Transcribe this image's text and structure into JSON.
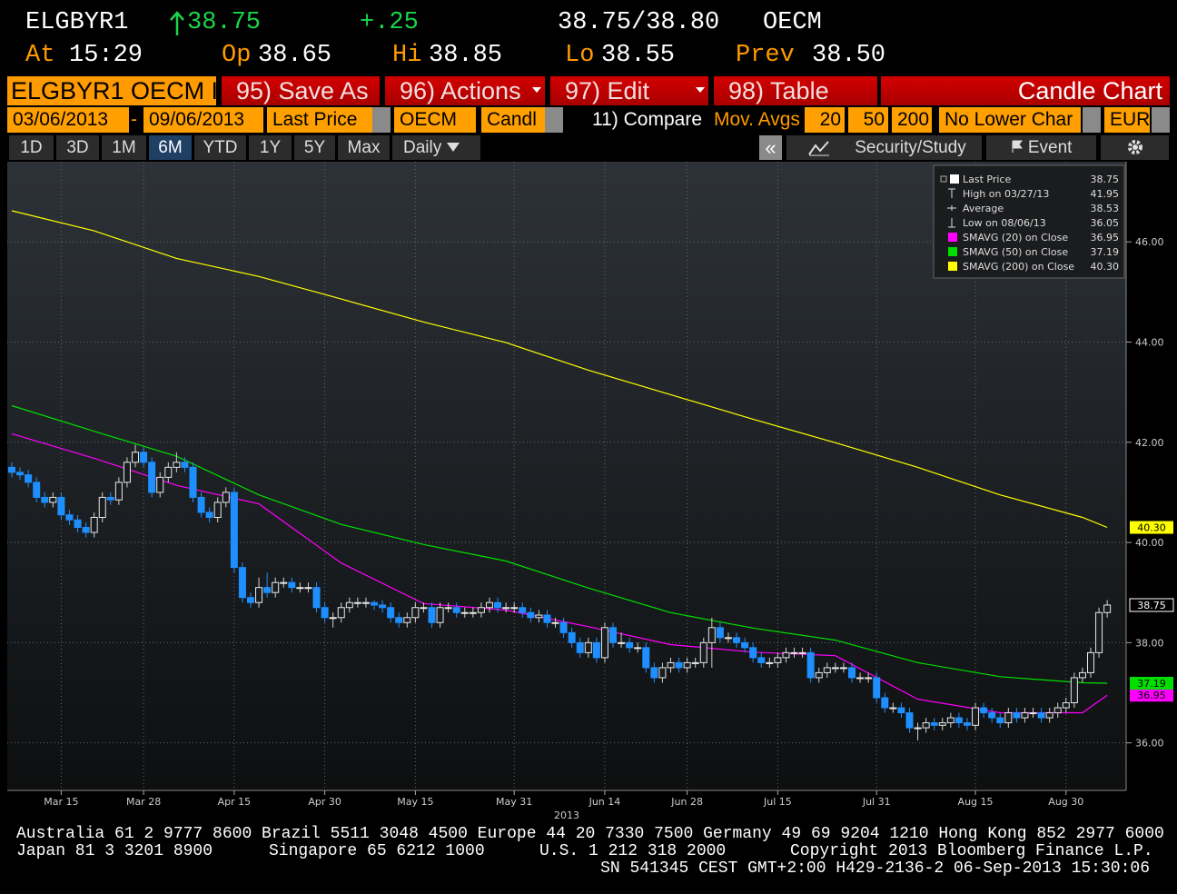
{
  "header": {
    "ticker": "ELGBYR1",
    "price": "38.75",
    "change": "+.25",
    "bid_ask": "38.75/38.80",
    "source": "OECM",
    "quote_row": [
      {
        "label": "At",
        "value": "15:29"
      },
      {
        "label": "Op",
        "value": "38.65"
      },
      {
        "label": "Hi",
        "value": "38.85"
      },
      {
        "label": "Lo",
        "value": "38.55"
      },
      {
        "label": "Prev",
        "value": "38.50"
      }
    ]
  },
  "toolbar": {
    "security": "ELGBYR1 OECM I",
    "buttons": [
      "95) Save As",
      "96) Actions",
      "97) Edit",
      "98) Table"
    ],
    "chart_type": "Candle Chart"
  },
  "settings": {
    "start": "03/06/2013",
    "separator": "-",
    "end": "09/06/2013",
    "field": "Last Price",
    "source": "OECM",
    "style": "Candl",
    "compare": "11) Compare",
    "mov_avgs": "Mov. Avgs",
    "periods": [
      "20",
      "50",
      "200"
    ],
    "lower_chart": "No Lower Char",
    "currency": "EUR"
  },
  "tabs": {
    "ranges": [
      "1D",
      "3D",
      "1M",
      "6M",
      "YTD",
      "1Y",
      "5Y",
      "Max"
    ],
    "selected": "6M",
    "frequency": "Daily",
    "back": "«",
    "study": "Security/Study",
    "event": "Event"
  },
  "chart_data": {
    "type": "candlestick",
    "x_label": "2013",
    "xlim": [
      -0.55,
      135.3
    ],
    "xticks": [
      {
        "value": 6,
        "label": "Mar 15"
      },
      {
        "value": 16,
        "label": "Mar 28"
      },
      {
        "value": 27,
        "label": "Apr 15"
      },
      {
        "value": 38,
        "label": "Apr 30"
      },
      {
        "value": 49,
        "label": "May 15"
      },
      {
        "value": 61,
        "label": "May 31"
      },
      {
        "value": 72,
        "label": "Jun 14"
      },
      {
        "value": 82,
        "label": "Jun 28"
      },
      {
        "value": 93,
        "label": "Jul 15"
      },
      {
        "value": 105,
        "label": "Jul 31"
      },
      {
        "value": 117,
        "label": "Aug 15"
      },
      {
        "value": 128,
        "label": "Aug 30"
      }
    ],
    "ylim": [
      35.05,
      47.6
    ],
    "yticks": [
      {
        "value": 36,
        "label": "36.00"
      },
      {
        "value": 38,
        "label": "38.00"
      },
      {
        "value": 40,
        "label": "40.00"
      },
      {
        "value": 42,
        "label": "42.00"
      },
      {
        "value": 44,
        "label": "44.00"
      },
      {
        "value": 46,
        "label": "46.00"
      }
    ],
    "grid": true,
    "up_color": "#ffffff",
    "down_color": "#1e8fff",
    "candles": {
      "open": [
        41.5,
        41.4,
        41.35,
        41.2,
        40.9,
        40.8,
        40.9,
        40.55,
        40.45,
        40.3,
        40.2,
        40.5,
        40.9,
        40.85,
        41.2,
        41.6,
        41.8,
        41.6,
        41.0,
        41.3,
        41.5,
        41.6,
        41.5,
        40.9,
        40.6,
        40.5,
        40.8,
        41.0,
        39.5,
        38.9,
        38.8,
        39.1,
        39.0,
        39.2,
        39.2,
        39.1,
        39.1,
        39.1,
        38.7,
        38.5,
        38.5,
        38.7,
        38.8,
        38.8,
        38.8,
        38.75,
        38.7,
        38.5,
        38.4,
        38.5,
        38.7,
        38.7,
        38.4,
        38.7,
        38.7,
        38.6,
        38.6,
        38.6,
        38.7,
        38.8,
        38.7,
        38.7,
        38.7,
        38.6,
        38.5,
        38.55,
        38.4,
        38.4,
        38.2,
        38.0,
        37.8,
        38.0,
        37.7,
        38.3,
        38.0,
        38.0,
        37.9,
        37.9,
        37.5,
        37.3,
        37.5,
        37.6,
        37.5,
        37.6,
        37.6,
        38.0,
        38.3,
        38.1,
        38.1,
        38.0,
        37.9,
        37.7,
        37.6,
        37.6,
        37.7,
        37.8,
        37.8,
        37.8,
        37.3,
        37.4,
        37.5,
        37.5,
        37.5,
        37.3,
        37.3,
        37.3,
        36.9,
        36.7,
        36.7,
        36.6,
        36.3,
        36.3,
        36.4,
        36.35,
        36.4,
        36.5,
        36.4,
        36.35,
        36.7,
        36.6,
        36.5,
        36.4,
        36.6,
        36.5,
        36.6,
        36.6,
        36.5,
        36.6,
        36.7,
        36.8,
        37.3,
        37.4,
        37.8,
        38.6
      ],
      "high": [
        41.6,
        41.5,
        41.45,
        41.3,
        41.0,
        41.0,
        41.0,
        40.65,
        40.55,
        40.4,
        40.6,
        41.0,
        41.0,
        41.3,
        41.7,
        41.95,
        41.9,
        41.7,
        41.4,
        41.6,
        41.8,
        41.7,
        41.6,
        41.0,
        40.7,
        40.9,
        41.1,
        41.1,
        39.6,
        39.0,
        39.3,
        39.4,
        39.3,
        39.3,
        39.3,
        39.2,
        39.2,
        39.2,
        38.8,
        38.6,
        38.8,
        38.9,
        38.9,
        38.9,
        38.85,
        38.85,
        38.8,
        38.6,
        38.6,
        38.8,
        38.8,
        38.8,
        38.8,
        38.8,
        38.8,
        38.7,
        38.7,
        38.8,
        38.9,
        38.9,
        38.8,
        38.8,
        38.8,
        38.7,
        38.65,
        38.65,
        38.5,
        38.5,
        38.3,
        38.1,
        38.1,
        38.1,
        38.4,
        38.4,
        38.2,
        38.1,
        38.0,
        38.0,
        37.6,
        37.6,
        37.7,
        37.7,
        37.7,
        37.7,
        38.1,
        38.5,
        38.4,
        38.2,
        38.2,
        38.1,
        38.0,
        37.8,
        37.7,
        37.8,
        37.9,
        37.9,
        37.9,
        37.9,
        37.5,
        37.6,
        37.6,
        37.6,
        37.6,
        37.4,
        37.4,
        37.4,
        37.0,
        36.8,
        36.8,
        36.7,
        36.4,
        36.5,
        36.5,
        36.5,
        36.6,
        36.6,
        36.5,
        36.8,
        36.8,
        36.7,
        36.6,
        36.7,
        36.7,
        36.7,
        36.7,
        36.7,
        36.7,
        36.8,
        36.9,
        37.4,
        37.5,
        37.9,
        38.7,
        38.85
      ],
      "low": [
        41.3,
        41.25,
        41.1,
        40.8,
        40.7,
        40.7,
        40.45,
        40.35,
        40.2,
        40.1,
        40.1,
        40.4,
        40.75,
        40.75,
        41.1,
        41.5,
        41.5,
        40.9,
        40.9,
        41.2,
        41.4,
        41.4,
        40.8,
        40.5,
        40.4,
        40.4,
        40.7,
        39.4,
        38.8,
        38.7,
        38.7,
        38.9,
        38.9,
        39.1,
        39.0,
        39.0,
        39.0,
        38.6,
        38.4,
        38.3,
        38.4,
        38.6,
        38.7,
        38.7,
        38.65,
        38.6,
        38.4,
        38.3,
        38.3,
        38.4,
        38.6,
        38.3,
        38.3,
        38.6,
        38.5,
        38.5,
        38.5,
        38.5,
        38.6,
        38.6,
        38.6,
        38.6,
        38.5,
        38.4,
        38.4,
        38.3,
        38.3,
        38.1,
        37.9,
        37.7,
        37.7,
        37.6,
        37.6,
        37.9,
        37.9,
        37.8,
        37.8,
        37.4,
        37.2,
        37.2,
        37.4,
        37.4,
        37.4,
        37.5,
        37.5,
        37.5,
        38.0,
        38.0,
        37.9,
        37.8,
        37.6,
        37.5,
        37.5,
        37.5,
        37.6,
        37.7,
        37.7,
        37.2,
        37.2,
        37.3,
        37.4,
        37.4,
        37.2,
        37.2,
        37.2,
        36.8,
        36.6,
        36.6,
        36.5,
        36.2,
        36.05,
        36.2,
        36.25,
        36.25,
        36.3,
        36.3,
        36.25,
        36.25,
        36.5,
        36.4,
        36.3,
        36.3,
        36.4,
        36.4,
        36.5,
        36.4,
        36.4,
        36.5,
        36.6,
        36.7,
        37.2,
        37.3,
        37.7,
        38.5
      ],
      "close": [
        41.4,
        41.35,
        41.2,
        40.9,
        40.8,
        40.9,
        40.55,
        40.45,
        40.3,
        40.2,
        40.5,
        40.9,
        40.85,
        41.2,
        41.6,
        41.8,
        41.6,
        41.0,
        41.3,
        41.5,
        41.6,
        41.5,
        40.9,
        40.6,
        40.5,
        40.8,
        41.0,
        39.5,
        38.9,
        38.8,
        39.1,
        39.0,
        39.2,
        39.2,
        39.1,
        39.1,
        39.1,
        38.7,
        38.5,
        38.5,
        38.7,
        38.8,
        38.8,
        38.8,
        38.75,
        38.7,
        38.5,
        38.4,
        38.5,
        38.7,
        38.7,
        38.4,
        38.7,
        38.7,
        38.6,
        38.6,
        38.6,
        38.7,
        38.8,
        38.7,
        38.7,
        38.7,
        38.6,
        38.5,
        38.55,
        38.4,
        38.4,
        38.2,
        38.0,
        37.8,
        38.0,
        37.7,
        38.3,
        38.0,
        38.0,
        37.9,
        37.9,
        37.5,
        37.3,
        37.5,
        37.6,
        37.5,
        37.6,
        37.6,
        38.0,
        38.3,
        38.1,
        38.1,
        38.0,
        37.9,
        37.7,
        37.6,
        37.6,
        37.7,
        37.8,
        37.8,
        37.8,
        37.3,
        37.4,
        37.5,
        37.5,
        37.5,
        37.3,
        37.3,
        37.3,
        36.9,
        36.7,
        36.7,
        36.6,
        36.3,
        36.3,
        36.4,
        36.35,
        36.4,
        36.5,
        36.4,
        36.35,
        36.7,
        36.6,
        36.5,
        36.4,
        36.6,
        36.5,
        36.6,
        36.6,
        36.5,
        36.6,
        36.7,
        36.8,
        37.3,
        37.4,
        37.8,
        38.6,
        38.75
      ]
    },
    "series": [
      {
        "name": "SMAVG (20) on Close",
        "color": "#ff00ff",
        "last": "36.95",
        "x": [
          0,
          10,
          20,
          30,
          40,
          50,
          60,
          70,
          80,
          90,
          100,
          110,
          120,
          130,
          133
        ],
        "values": [
          42.17,
          41.68,
          41.14,
          40.77,
          39.59,
          38.78,
          38.65,
          38.32,
          37.96,
          37.81,
          37.74,
          36.87,
          36.6,
          36.6,
          36.95
        ]
      },
      {
        "name": "SMAVG (50) on Close",
        "color": "#00e000",
        "last": "37.19",
        "x": [
          0,
          10,
          20,
          30,
          40,
          50,
          60,
          70,
          80,
          90,
          100,
          110,
          120,
          130,
          133
        ],
        "values": [
          42.73,
          42.22,
          41.72,
          40.95,
          40.36,
          39.96,
          39.63,
          39.09,
          38.6,
          38.29,
          38.05,
          37.6,
          37.32,
          37.2,
          37.19
        ]
      },
      {
        "name": "SMAVG (200) on Close",
        "color": "#ffff00",
        "last": "40.30",
        "x": [
          0,
          10,
          20,
          30,
          40,
          50,
          60,
          70,
          80,
          90,
          100,
          110,
          120,
          130,
          133
        ],
        "values": [
          46.62,
          46.22,
          45.67,
          45.31,
          44.86,
          44.4,
          43.99,
          43.44,
          42.95,
          42.46,
          41.99,
          41.5,
          40.95,
          40.5,
          40.3
        ]
      }
    ],
    "legend": [
      {
        "label": "Last Price",
        "value": "38.75"
      },
      {
        "label": "High on 03/27/13",
        "value": "41.95"
      },
      {
        "label": "Average",
        "value": "38.53"
      },
      {
        "label": "Low on 08/06/13",
        "value": "36.05"
      }
    ]
  },
  "footer": {
    "line1": "Australia 61 2 9777 8600 Brazil 5511 3048 4500 Europe 44 20 7330 7500 Germany 49 69 9204 1210 Hong Kong 852 2977 6000",
    "line2": [
      "Japan 81 3 3201 8900",
      "Singapore 65 6212 1000",
      "U.S. 1 212 318 2000",
      "Copyright 2013 Bloomberg Finance L.P."
    ],
    "line3": "SN 541345 CEST GMT+2:00 H429-2136-2 06-Sep-2013 15:30:06"
  }
}
